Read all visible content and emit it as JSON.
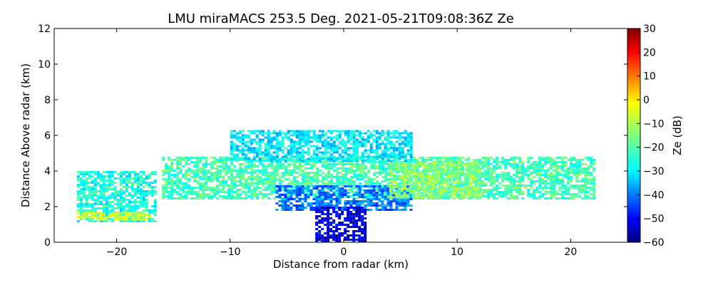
{
  "chart_data": {
    "type": "heatmap",
    "title": "LMU miraMACS 253.5 Deg. 2021-05-21T09:08:36Z  Ze",
    "xlabel": "Distance from radar (km)",
    "ylabel": "Distance Above radar  (km)",
    "xlim": [
      -25.5,
      25
    ],
    "ylim": [
      0,
      12
    ],
    "x_ticks": [
      "−20",
      "−10",
      "0",
      "10",
      "20"
    ],
    "x_tick_values": [
      -20,
      -10,
      0,
      10,
      20
    ],
    "y_ticks": [
      "0",
      "2",
      "4",
      "6",
      "8",
      "10",
      "12"
    ],
    "y_tick_values": [
      0,
      2,
      4,
      6,
      8,
      10,
      12
    ],
    "colorbar": {
      "label": "Ze (dB)",
      "range": [
        -60,
        30
      ],
      "colormap": "jet",
      "ticks": [
        "−60",
        "−50",
        "−40",
        "−30",
        "−20",
        "−10",
        "0",
        "10",
        "20",
        "30"
      ],
      "tick_values": [
        -60,
        -50,
        -40,
        -30,
        -20,
        -10,
        0,
        10,
        20,
        30
      ]
    },
    "regions": [
      {
        "x": [
          -23.5,
          -16.5
        ],
        "y": [
          1.2,
          4.0
        ],
        "ze": -24
      },
      {
        "x": [
          -16,
          22
        ],
        "y": [
          2.5,
          4.8
        ],
        "ze": -20
      },
      {
        "x": [
          -10,
          6
        ],
        "y": [
          4.5,
          6.3
        ],
        "ze": -28
      },
      {
        "x": [
          -6,
          6
        ],
        "y": [
          1.8,
          3.2
        ],
        "ze": -38
      },
      {
        "x": [
          -2.5,
          2
        ],
        "y": [
          0,
          2
        ],
        "ze": -52
      },
      {
        "x": [
          4,
          12
        ],
        "y": [
          2.5,
          4.5
        ],
        "ze": -14
      },
      {
        "x": [
          -23.5,
          -17
        ],
        "y": [
          1.3,
          1.7
        ],
        "ze": -8
      }
    ]
  }
}
